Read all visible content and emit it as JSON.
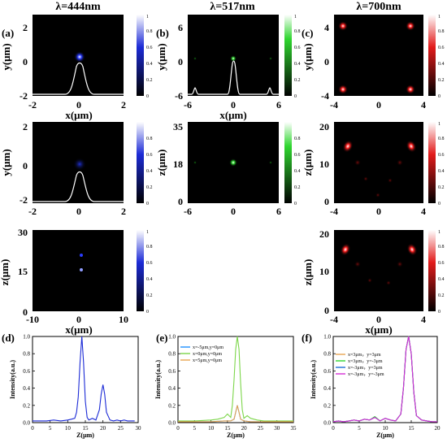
{
  "titles": [
    "λ=444nm",
    "λ=517nm",
    "λ=700nm"
  ],
  "panel_labels": [
    "(a)",
    "(b)",
    "(c)",
    "(d)",
    "(e)",
    "(f)"
  ],
  "colors": {
    "blue": "#1c2bd6",
    "green": "#2fd62f",
    "red": "#e21b1b"
  },
  "colorbar": {
    "ticks_a": [
      "1",
      "0.8",
      "0.6",
      "0.4",
      "0.2",
      "0"
    ],
    "ticks_b": [
      "0.8",
      "0.6",
      "0.4",
      "0.2",
      "0"
    ],
    "ticks_c": [
      "1",
      "0.8",
      "0.6",
      "0.4",
      "0.2",
      "0"
    ]
  },
  "axes": {
    "a1": {
      "yticks": [
        "2",
        "0",
        "-2"
      ],
      "xticks": [
        "-2",
        "0",
        "2"
      ],
      "ylabel": "y(μm)",
      "xlabel": "x(μm)"
    },
    "a2": {
      "yticks": [
        "2",
        "0",
        "-2"
      ],
      "xticks": [
        "-2",
        "0",
        "2"
      ],
      "ylabel": "y(μm)"
    },
    "a3": {
      "yticks": [
        "30",
        "15",
        "0"
      ],
      "xticks": [
        "-10",
        "0",
        "10"
      ],
      "ylabel": "z(μm)",
      "xlabel": "x(μm)"
    },
    "b1": {
      "yticks": [
        "6",
        "0",
        "-6"
      ],
      "xticks": [
        "-6",
        "0",
        "6"
      ],
      "ylabel": "y(μm)",
      "xlabel": "x(μm)"
    },
    "b2": {
      "yticks": [
        "35",
        "18",
        "0"
      ],
      "xticks": [
        "-6",
        "0",
        "6"
      ],
      "ylabel": "z(μm)"
    },
    "c1": {
      "yticks": [
        "4",
        "0",
        "-4"
      ],
      "xticks": [
        "-4",
        "0",
        "4"
      ],
      "ylabel": "y(μm)"
    },
    "c2": {
      "yticks": [
        "20",
        "10",
        "0"
      ],
      "xticks": [
        "-4",
        "0",
        "4"
      ],
      "ylabel": "z(μm)"
    },
    "c3": {
      "yticks": [
        "20",
        "10",
        "0"
      ],
      "xticks": [
        "-4",
        "0",
        "4"
      ],
      "ylabel": "z(μm)",
      "xlabel": "x(μm)"
    }
  },
  "chart_data": [
    {
      "type": "line",
      "panel": "(d)",
      "xlabel": "Z(μm)",
      "ylabel": "Intensity(a.u.)",
      "xlim": [
        0,
        30
      ],
      "ylim": [
        0,
        1.0
      ],
      "xticks": [
        0,
        5,
        10,
        15,
        20,
        25,
        30
      ],
      "yticks": [
        0.0,
        0.2,
        0.4,
        0.6,
        0.8,
        1.0
      ],
      "series": [
        {
          "color": "#1c2bd6",
          "x": [
            0,
            2,
            4,
            6,
            8,
            10,
            11,
            12,
            12.5,
            13,
            13.5,
            14,
            14.5,
            15,
            15.5,
            16,
            17,
            18,
            19,
            19.5,
            20,
            20.5,
            21,
            22,
            23,
            24,
            25,
            26,
            27,
            28,
            29
          ],
          "y": [
            0.02,
            0.02,
            0.02,
            0.03,
            0.02,
            0.03,
            0.04,
            0.05,
            0.12,
            0.3,
            0.7,
            1.0,
            0.7,
            0.25,
            0.06,
            0.03,
            0.05,
            0.03,
            0.15,
            0.33,
            0.44,
            0.33,
            0.12,
            0.03,
            0.02,
            0.03,
            0.02,
            0.03,
            0.02,
            0.02,
            0.02
          ]
        }
      ]
    },
    {
      "type": "line",
      "panel": "(e)",
      "xlabel": "Z(μm)",
      "ylabel": "Intensity(a.u.)",
      "xlim": [
        0,
        35
      ],
      "ylim": [
        0,
        1.0
      ],
      "xticks": [
        0,
        5,
        10,
        15,
        20,
        25,
        30,
        35
      ],
      "yticks": [
        0.0,
        0.2,
        0.4,
        0.6,
        0.8,
        1.0
      ],
      "legend_position": "top-left",
      "series": [
        {
          "name": "x=-5μm,y=0μm",
          "color": "#1e90ff",
          "x": [
            0,
            5,
            10,
            14,
            16,
            17,
            17.5,
            18,
            18.5,
            19,
            20,
            22,
            25,
            30,
            35
          ],
          "y": [
            0.01,
            0.01,
            0.01,
            0.02,
            0.02,
            0.04,
            0.12,
            0.2,
            0.12,
            0.04,
            0.02,
            0.01,
            0.01,
            0.01,
            0.01
          ]
        },
        {
          "name": "x=0μm,y=0μm",
          "color": "#7cd64a",
          "x": [
            0,
            5,
            10,
            12,
            14,
            15,
            16,
            16.5,
            17,
            17.5,
            18,
            18.5,
            19,
            19.5,
            20,
            21,
            22,
            24,
            26,
            30,
            35
          ],
          "y": [
            0.02,
            0.02,
            0.03,
            0.04,
            0.06,
            0.1,
            0.06,
            0.2,
            0.5,
            0.85,
            1.0,
            0.85,
            0.45,
            0.15,
            0.05,
            0.08,
            0.05,
            0.03,
            0.02,
            0.02,
            0.02
          ]
        },
        {
          "name": "x=5μm,y=0μm",
          "color": "#e8a552",
          "x": [
            0,
            5,
            10,
            14,
            16,
            17,
            17.5,
            18,
            18.5,
            19,
            20,
            22,
            25,
            30,
            35
          ],
          "y": [
            0.01,
            0.01,
            0.01,
            0.02,
            0.02,
            0.04,
            0.12,
            0.2,
            0.12,
            0.04,
            0.02,
            0.01,
            0.01,
            0.01,
            0.01
          ]
        }
      ]
    },
    {
      "type": "line",
      "panel": "(f)",
      "xlabel": "Z(μm)",
      "ylabel": "Intensity(a.u.)",
      "xlim": [
        0,
        20
      ],
      "ylim": [
        0,
        1.0
      ],
      "xticks": [
        0,
        5,
        10,
        15,
        20
      ],
      "yticks": [
        0.0,
        0.2,
        0.4,
        0.6,
        0.8,
        1.0
      ],
      "legend_position": "top-left",
      "series": [
        {
          "name": "x=3μm，y=3μm",
          "color": "#e8a552",
          "x": [
            0,
            1,
            2,
            3,
            4,
            5,
            6,
            7,
            8,
            9,
            10,
            11,
            12,
            13,
            13.5,
            14,
            14.5,
            15,
            15.5,
            16,
            17,
            18,
            19,
            20
          ],
          "y": [
            0.01,
            0.02,
            0.01,
            0.02,
            0.03,
            0.02,
            0.04,
            0.03,
            0.06,
            0.02,
            0.05,
            0.03,
            0.02,
            0.1,
            0.4,
            0.85,
            1.0,
            0.8,
            0.35,
            0.08,
            0.03,
            0.02,
            0.01,
            0.01
          ]
        },
        {
          "name": "x=3μm，y=-3μm",
          "color": "#2fd62f",
          "x": [
            0,
            1,
            2,
            3,
            4,
            5,
            6,
            7,
            8,
            9,
            10,
            11,
            12,
            13,
            13.5,
            14,
            14.5,
            15,
            15.5,
            16,
            17,
            18,
            19,
            20
          ],
          "y": [
            0.01,
            0.02,
            0.01,
            0.02,
            0.03,
            0.02,
            0.04,
            0.03,
            0.07,
            0.02,
            0.05,
            0.03,
            0.02,
            0.1,
            0.4,
            0.85,
            1.0,
            0.8,
            0.35,
            0.08,
            0.03,
            0.02,
            0.01,
            0.01
          ]
        },
        {
          "name": "x=-3μm，y=3μm",
          "color": "#1c6fd6",
          "x": [
            0,
            1,
            2,
            3,
            4,
            5,
            6,
            7,
            8,
            9,
            10,
            11,
            12,
            13,
            13.5,
            14,
            14.5,
            15,
            15.5,
            16,
            17,
            18,
            19,
            20
          ],
          "y": [
            0.01,
            0.02,
            0.01,
            0.02,
            0.03,
            0.02,
            0.04,
            0.03,
            0.06,
            0.02,
            0.05,
            0.03,
            0.02,
            0.1,
            0.4,
            0.85,
            1.0,
            0.8,
            0.35,
            0.08,
            0.03,
            0.02,
            0.01,
            0.01
          ]
        },
        {
          "name": "x=-3μm，y=-3μm",
          "color": "#d62fd6",
          "x": [
            0,
            1,
            2,
            3,
            4,
            5,
            6,
            7,
            8,
            9,
            10,
            11,
            12,
            13,
            13.5,
            14,
            14.5,
            15,
            15.5,
            16,
            17,
            18,
            19,
            20
          ],
          "y": [
            0.01,
            0.02,
            0.01,
            0.02,
            0.03,
            0.02,
            0.04,
            0.03,
            0.06,
            0.02,
            0.05,
            0.03,
            0.02,
            0.1,
            0.4,
            0.85,
            1.0,
            0.8,
            0.35,
            0.08,
            0.03,
            0.02,
            0.01,
            0.01
          ]
        }
      ]
    }
  ]
}
